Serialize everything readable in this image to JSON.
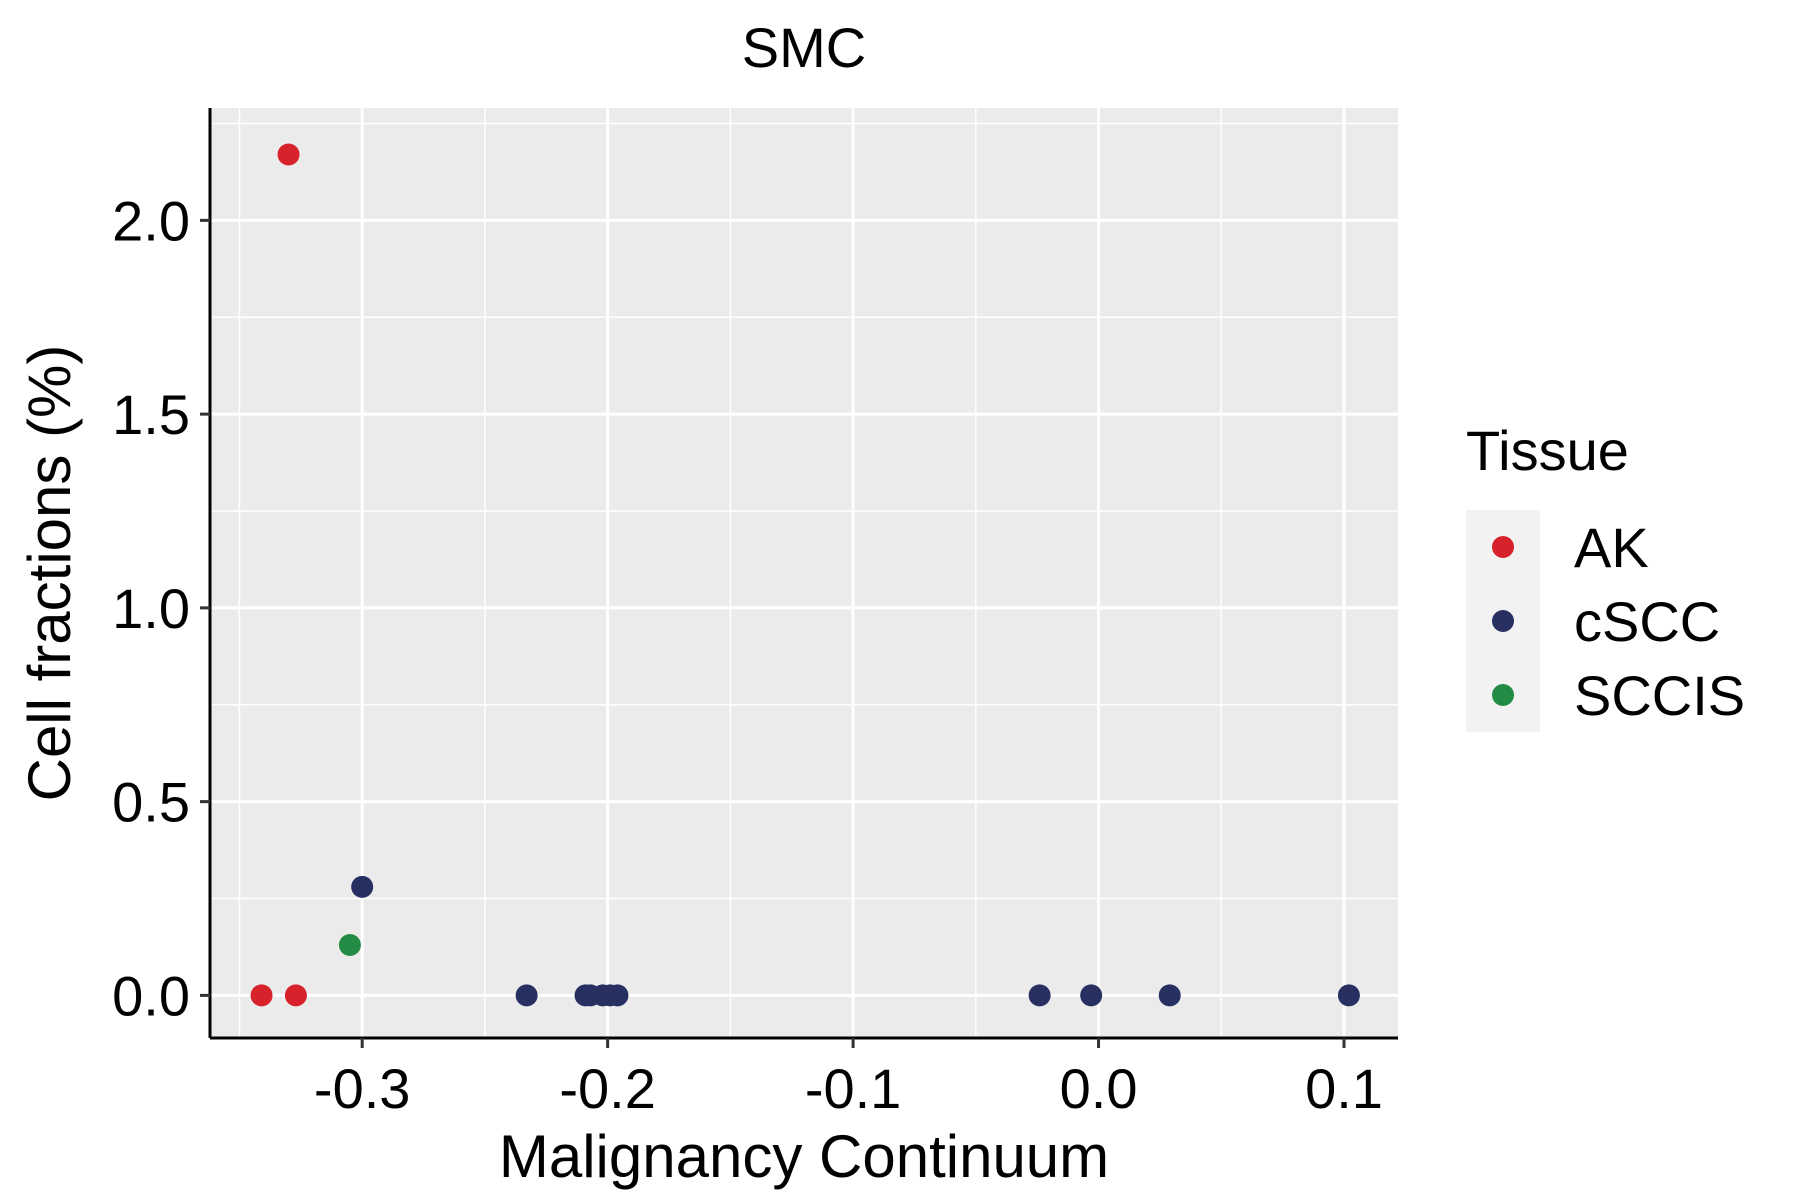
{
  "chart_data": {
    "type": "scatter",
    "title": "SMC",
    "xlabel": "Malignancy Continuum",
    "ylabel": "Cell fractions (%)",
    "xlim": [
      -0.362,
      0.122
    ],
    "ylim": [
      -0.11,
      2.29
    ],
    "x_ticks": [
      -0.3,
      -0.2,
      -0.1,
      0.0,
      0.1
    ],
    "x_tick_labels": [
      "-0.3",
      "-0.2",
      "-0.1",
      "0.0",
      "0.1"
    ],
    "y_ticks": [
      0.0,
      0.5,
      1.0,
      1.5,
      2.0
    ],
    "y_tick_labels": [
      "0.0",
      "0.5",
      "1.0",
      "1.5",
      "2.0"
    ],
    "grid": true,
    "legend_position": "right",
    "legend_title": "Tissue",
    "series": [
      {
        "name": "AK",
        "color": "#d7222b",
        "points": [
          [
            -0.33,
            2.17
          ],
          [
            -0.341,
            0.0
          ],
          [
            -0.327,
            0.0
          ]
        ]
      },
      {
        "name": "cSCC",
        "color": "#283062",
        "points": [
          [
            -0.3,
            0.28
          ],
          [
            -0.233,
            0.0
          ],
          [
            -0.209,
            0.0
          ],
          [
            -0.207,
            0.0
          ],
          [
            -0.202,
            0.0
          ],
          [
            -0.199,
            0.0
          ],
          [
            -0.196,
            0.0
          ],
          [
            -0.024,
            0.0
          ],
          [
            -0.003,
            0.0
          ],
          [
            0.029,
            0.0
          ],
          [
            0.102,
            0.0
          ]
        ]
      },
      {
        "name": "SCCIS",
        "color": "#238b44",
        "points": [
          [
            -0.305,
            0.13
          ]
        ]
      }
    ],
    "colors": {
      "panel_background": "#ebebeb",
      "grid": "#ffffff",
      "legend_key_background": "#f2f2f2"
    }
  }
}
